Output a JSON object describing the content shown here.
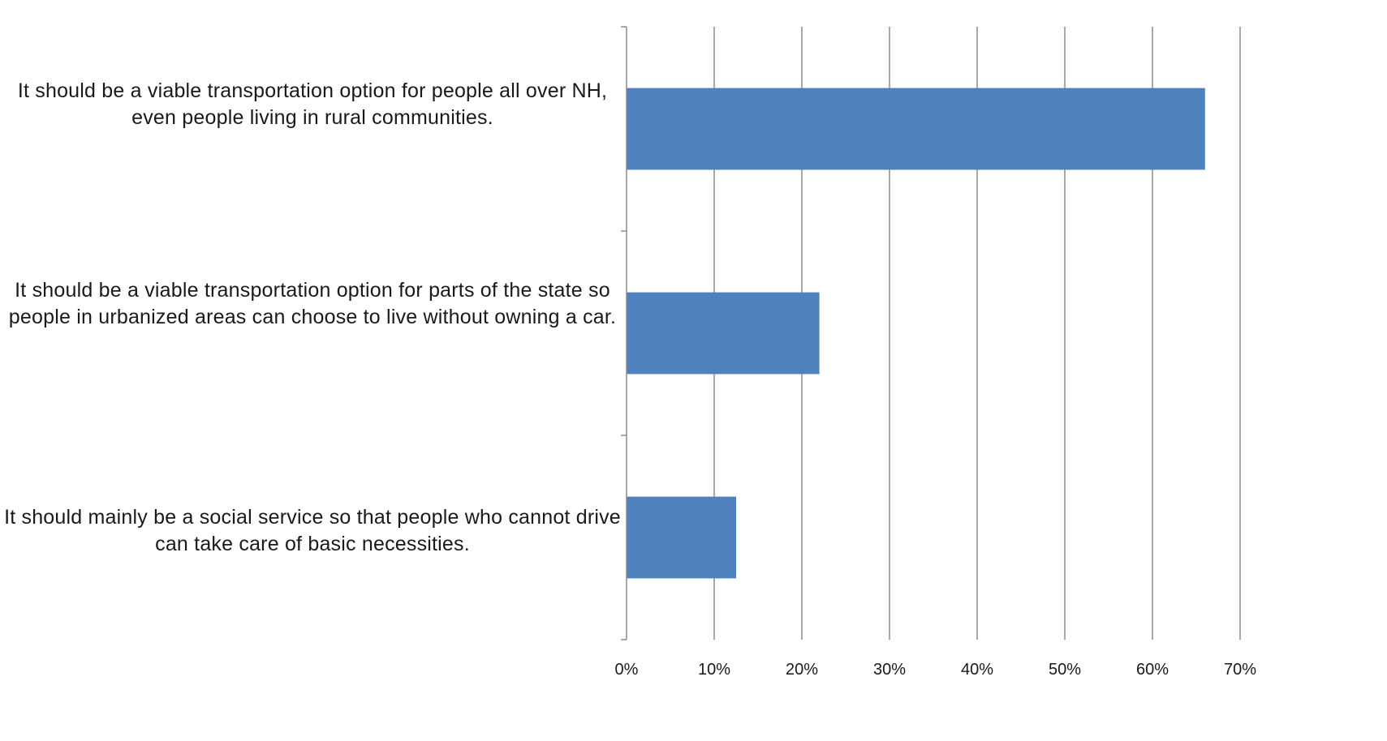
{
  "chart_data": {
    "type": "bar",
    "orientation": "horizontal",
    "categories": [
      "It should be a viable transportation option for people all over NH, even people living in rural communities.",
      "It should be a viable transportation option for parts of the state so people in urbanized areas can choose to live without owning a car.",
      "It should mainly be a social service so that people who cannot drive can take care of basic necessities."
    ],
    "values": [
      66,
      22,
      12.5
    ],
    "value_unit": "percent",
    "xlim": [
      0,
      70
    ],
    "x_ticks": [
      "0%",
      "10%",
      "20%",
      "30%",
      "40%",
      "50%",
      "60%",
      "70%"
    ],
    "grid": true,
    "legend": "none",
    "title": "",
    "xlabel": "",
    "ylabel": ""
  },
  "colors": {
    "bar": "#4F81BD",
    "grid": "#8c8c8c",
    "axis": "#8c8c8c"
  }
}
